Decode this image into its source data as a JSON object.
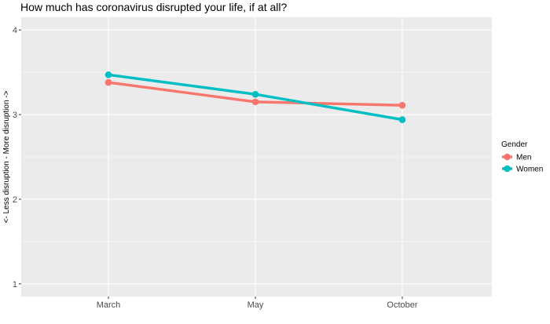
{
  "chart_data": {
    "type": "line",
    "title": "How much has coronavirus disrupted your life, if at all?",
    "xlabel": "",
    "ylabel": "<- Less disruption - More disruption ->",
    "categories": [
      "March",
      "May",
      "October"
    ],
    "ylim": [
      0.85,
      4.15
    ],
    "yticks": [
      1,
      2,
      3,
      4
    ],
    "grid": true,
    "legend": {
      "title": "Gender",
      "position": "right"
    },
    "series": [
      {
        "name": "Men",
        "color": "#F8766D",
        "values": [
          3.38,
          3.15,
          3.11
        ]
      },
      {
        "name": "Women",
        "color": "#00BFC4",
        "values": [
          3.47,
          3.24,
          2.94
        ]
      }
    ]
  }
}
